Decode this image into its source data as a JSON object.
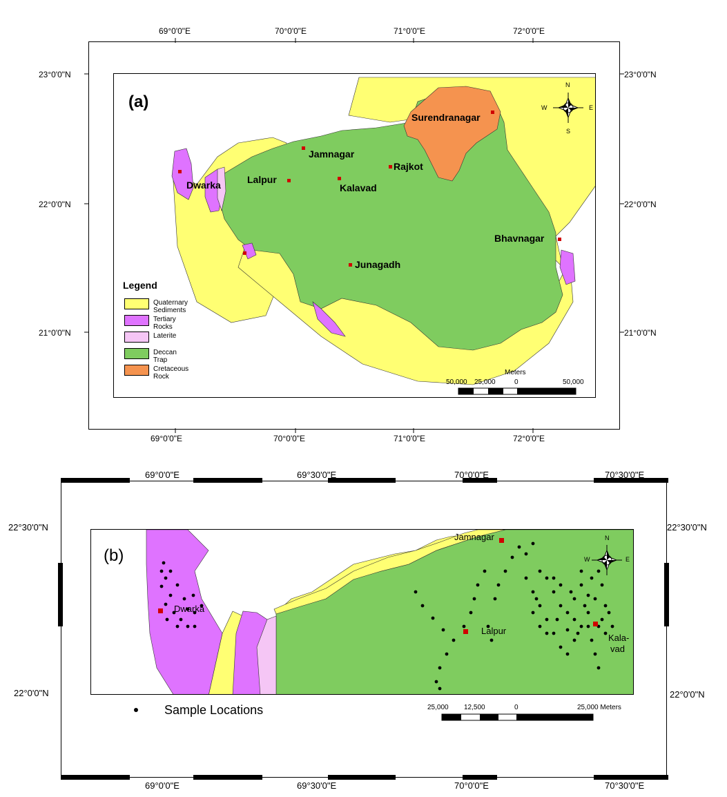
{
  "panel_a": {
    "tag": "(a)",
    "top_longitudes": [
      "69°0'0\"E",
      "70°0'0\"E",
      "71°0'0\"E",
      "72°0'0\"E"
    ],
    "bottom_longitudes": [
      "69°0'0\"E",
      "70°0'0\"E",
      "71°0'0\"E",
      "72°0'0\"E"
    ],
    "left_latitudes": [
      "23°0'0\"N",
      "22°0'0\"N",
      "21°0'0\"N"
    ],
    "right_latitudes": [
      "23°0'0\"N",
      "22°0'0\"N",
      "21°0'0\"N"
    ],
    "cities": {
      "surendranagar": "Surendranagar",
      "jamnagar": "Jamnagar",
      "rajkot": "Rajkot",
      "dwarka": "Dwarka",
      "lalpur": "Lalpur",
      "kalavad": "Kalavad",
      "bhavnagar": "Bhavnagar",
      "junagadh": "Junagadh"
    },
    "legend": {
      "title": "Legend",
      "items": [
        {
          "label": "Quaternary Sediments",
          "color": "#ffff73"
        },
        {
          "label": "Tertiary Rocks",
          "color": "#df73ff"
        },
        {
          "label": "Laterite",
          "color": "#f5c6f5"
        },
        {
          "label": "Deccan Trap",
          "color": "#7fcc5f"
        },
        {
          "label": "Cretaceous Rock",
          "color": "#f5934f"
        }
      ]
    },
    "scale": {
      "unit": "Meters",
      "ticks": [
        "50,000",
        "25,000",
        "0",
        "50,000"
      ]
    },
    "compass": {
      "n": "N",
      "s": "S",
      "e": "E",
      "w": "W"
    }
  },
  "panel_b": {
    "tag": "(b)",
    "top_longitudes": [
      "69°0'0\"E",
      "69°30'0\"E",
      "70°0'0\"E",
      "70°30'0\"E"
    ],
    "bottom_longitudes": [
      "69°0'0\"E",
      "69°30'0\"E",
      "70°0'0\"E",
      "70°30'0\"E"
    ],
    "left_latitudes": [
      "22°30'0\"N",
      "22°0'0\"N"
    ],
    "right_latitudes": [
      "22°30'0\"N",
      "22°0'0\"N"
    ],
    "cities": {
      "jamnagar": "Jamnagar",
      "dwarka": "Dwarka",
      "lalpur": "Lalpur",
      "kalavad_1": "Kala-",
      "kalavad_2": "vad"
    },
    "legend_label": "Sample Locations",
    "scale": {
      "ticks": [
        "25,000",
        "12,500",
        "0",
        "25,000 Meters"
      ]
    },
    "compass": {
      "n": "N",
      "e": "E",
      "w": "W"
    }
  }
}
